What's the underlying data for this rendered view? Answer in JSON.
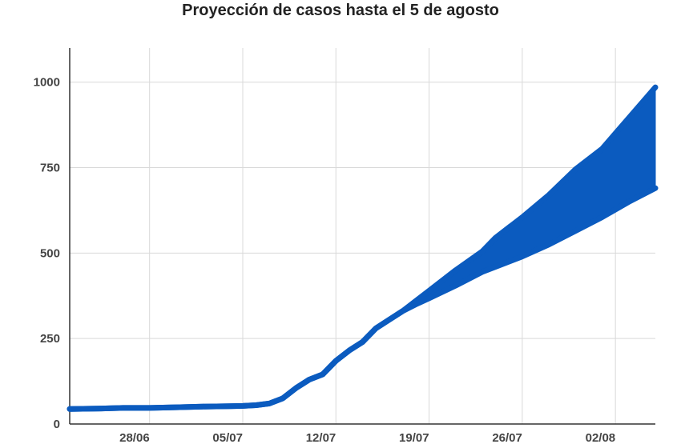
{
  "chart_data": {
    "type": "area",
    "title": "Proyección de casos hasta el 5 de agosto",
    "xlabel": "",
    "ylabel": "",
    "ylim": [
      0,
      1100
    ],
    "y_ticks": [
      0,
      250,
      500,
      750,
      1000
    ],
    "x_ticks": [
      {
        "label": "28/06",
        "day": "2020-06-28"
      },
      {
        "label": "05/07",
        "day": "2020-07-05"
      },
      {
        "label": "12/07",
        "day": "2020-07-12"
      },
      {
        "label": "19/07",
        "day": "2020-07-19"
      },
      {
        "label": "26/07",
        "day": "2020-07-26"
      },
      {
        "label": "02/08",
        "day": "2020-08-02"
      }
    ],
    "x_range": [
      "2020-06-22",
      "2020-08-05"
    ],
    "grid": true,
    "legend": "none",
    "color": "#0b5bbf",
    "series": [
      {
        "name": "",
        "band": "upper",
        "points": [
          [
            "2020-06-22",
            44
          ],
          [
            "2020-06-24",
            45
          ],
          [
            "2020-06-26",
            47
          ],
          [
            "2020-06-28",
            47
          ],
          [
            "2020-06-30",
            49
          ],
          [
            "2020-07-02",
            51
          ],
          [
            "2020-07-04",
            52
          ],
          [
            "2020-07-05",
            53
          ],
          [
            "2020-07-06",
            55
          ],
          [
            "2020-07-07",
            60
          ],
          [
            "2020-07-08",
            75
          ],
          [
            "2020-07-09",
            105
          ],
          [
            "2020-07-10",
            130
          ],
          [
            "2020-07-11",
            145
          ],
          [
            "2020-07-12",
            185
          ],
          [
            "2020-07-13",
            215
          ],
          [
            "2020-07-14",
            240
          ],
          [
            "2020-07-15",
            280
          ],
          [
            "2020-07-16",
            305
          ],
          [
            "2020-07-17",
            330
          ],
          [
            "2020-07-18",
            360
          ],
          [
            "2020-07-19",
            390
          ],
          [
            "2020-07-21",
            450
          ],
          [
            "2020-07-23",
            505
          ],
          [
            "2020-07-24",
            545
          ],
          [
            "2020-07-26",
            605
          ],
          [
            "2020-07-28",
            670
          ],
          [
            "2020-07-30",
            745
          ],
          [
            "2020-08-01",
            805
          ],
          [
            "2020-08-03",
            895
          ],
          [
            "2020-08-05",
            985
          ]
        ]
      },
      {
        "name": "",
        "band": "lower",
        "points": [
          [
            "2020-06-22",
            44
          ],
          [
            "2020-06-24",
            45
          ],
          [
            "2020-06-26",
            47
          ],
          [
            "2020-06-28",
            47
          ],
          [
            "2020-06-30",
            49
          ],
          [
            "2020-07-02",
            51
          ],
          [
            "2020-07-04",
            52
          ],
          [
            "2020-07-05",
            53
          ],
          [
            "2020-07-06",
            55
          ],
          [
            "2020-07-07",
            60
          ],
          [
            "2020-07-08",
            75
          ],
          [
            "2020-07-09",
            105
          ],
          [
            "2020-07-10",
            130
          ],
          [
            "2020-07-11",
            145
          ],
          [
            "2020-07-12",
            185
          ],
          [
            "2020-07-13",
            215
          ],
          [
            "2020-07-14",
            240
          ],
          [
            "2020-07-15",
            280
          ],
          [
            "2020-07-16",
            305
          ],
          [
            "2020-07-17",
            330
          ],
          [
            "2020-07-18",
            350
          ],
          [
            "2020-07-19",
            368
          ],
          [
            "2020-07-21",
            405
          ],
          [
            "2020-07-23",
            445
          ],
          [
            "2020-07-24",
            460
          ],
          [
            "2020-07-26",
            490
          ],
          [
            "2020-07-28",
            525
          ],
          [
            "2020-07-30",
            565
          ],
          [
            "2020-08-01",
            605
          ],
          [
            "2020-08-03",
            650
          ],
          [
            "2020-08-05",
            690
          ]
        ]
      }
    ]
  }
}
